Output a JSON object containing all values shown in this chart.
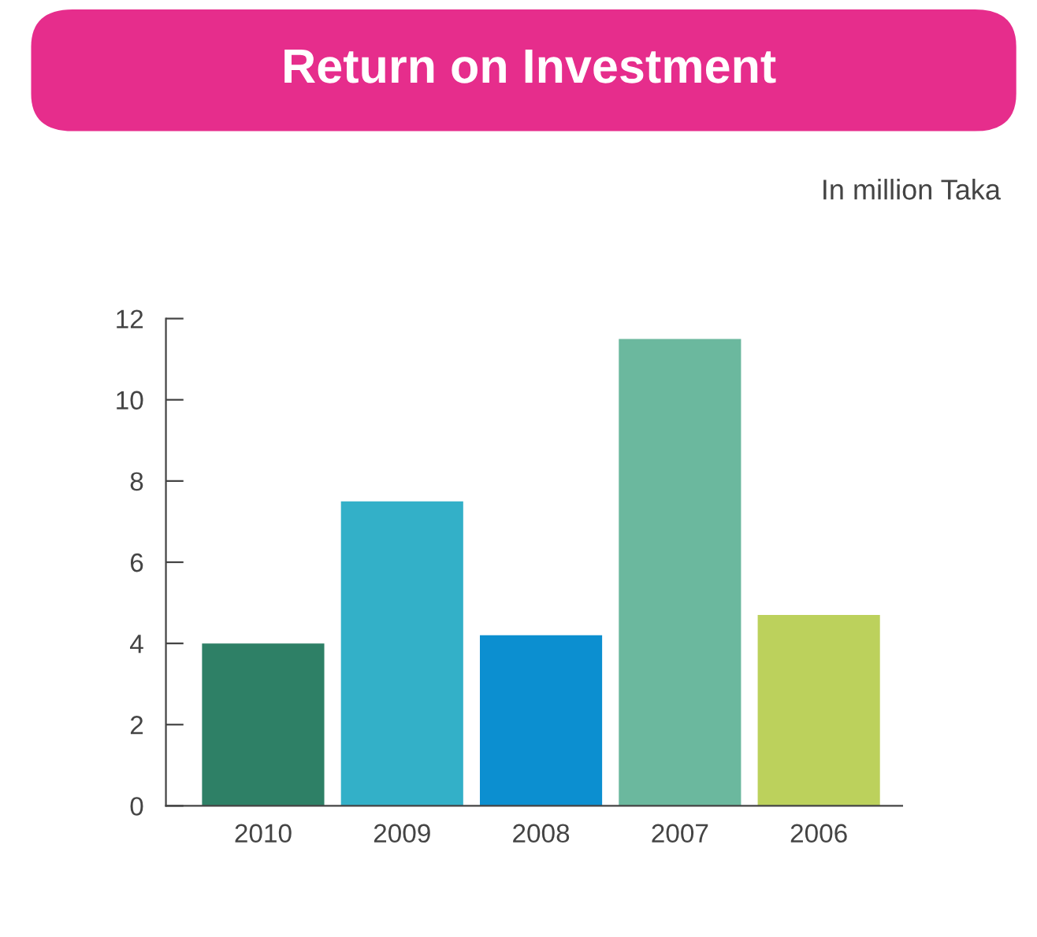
{
  "chart_data": {
    "type": "bar",
    "title": "Return on Investment",
    "subtitle": "In million Taka",
    "categories": [
      "2010",
      "2009",
      "2008",
      "2007",
      "2006"
    ],
    "values": [
      4.0,
      7.5,
      4.2,
      11.5,
      4.7
    ],
    "colors": [
      "#2e8066",
      "#33b0c8",
      "#0c8fd0",
      "#6bb89e",
      "#bcd15c"
    ],
    "ylim": [
      0,
      12
    ],
    "yticks": [
      0,
      2,
      4,
      6,
      8,
      10,
      12
    ],
    "grid": false,
    "legend": false
  }
}
